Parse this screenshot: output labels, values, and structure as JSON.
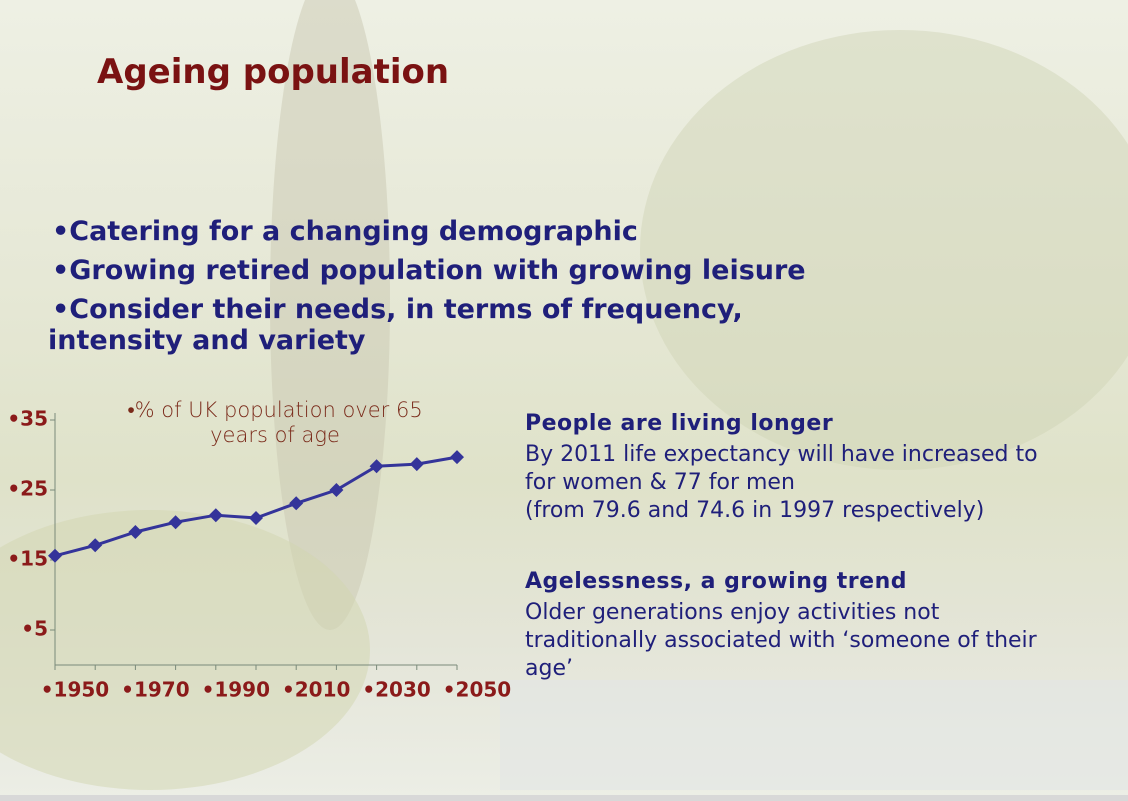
{
  "slide": {
    "title": "Ageing population",
    "bullets": [
      [
        "•Catering for a changing demographic"
      ],
      [
        "•Growing retired population with growing leisure"
      ],
      [
        "•Consider their needs, in terms of frequency,",
        "intensity and variety"
      ]
    ],
    "blocks": [
      {
        "heading": "People are living longer",
        "lines": [
          "By 2011 life expectancy will have increased to",
          "for women & 77 for men",
          "(from 79.6 and 74.6 in 1997 respectively)"
        ]
      },
      {
        "heading": "Agelessness, a growing trend",
        "lines": [
          "Older generations enjoy activities not",
          "traditionally associated with ‘someone of their",
          "age’"
        ]
      }
    ]
  },
  "chart_data": {
    "type": "line",
    "title": "•% of UK population over 65 years of age",
    "categories": [
      "•1950",
      null,
      "•1970",
      null,
      "•1990",
      null,
      "•2010",
      null,
      "•2030",
      null,
      "•2050"
    ],
    "series": [
      {
        "color": "#34349a",
        "values": [
          15.6,
          17.1,
          19,
          20.4,
          21.4,
          21,
          23.1,
          25,
          28.4,
          28.7,
          29.7
        ]
      }
    ],
    "ylim": [
      0,
      36
    ],
    "yticks": [
      {
        "value": 5,
        "label": "•5"
      },
      {
        "value": 15,
        "label": "•15"
      },
      {
        "value": 25,
        "label": "•25"
      },
      {
        "value": 35,
        "label": "•35"
      }
    ]
  }
}
